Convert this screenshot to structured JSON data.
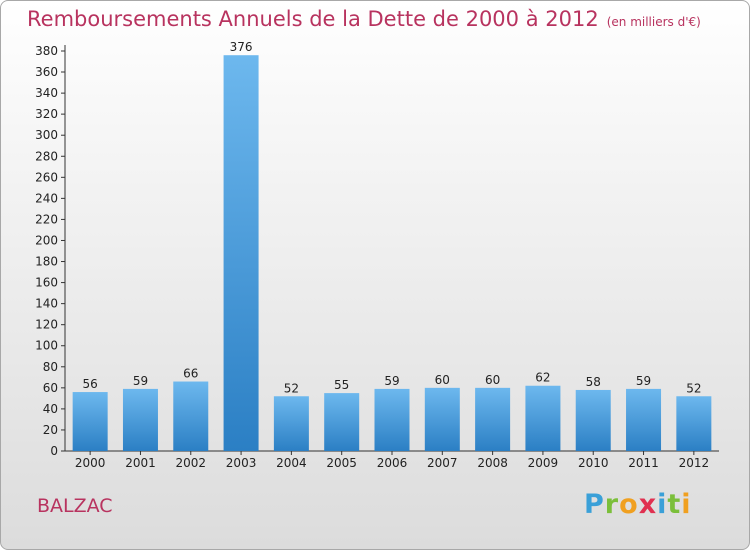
{
  "title": "Remboursements Annuels de la Dette de 2000 à 2012",
  "unit_note": "(en milliers d'€)",
  "commune": "BALZAC",
  "logo": {
    "letters": [
      "P",
      "r",
      "o",
      "x",
      "i",
      "t",
      "i"
    ],
    "colors": [
      "#3aa0d8",
      "#7bbf3a",
      "#f0a020",
      "#e03050",
      "#3aa0d8",
      "#7bbf3a",
      "#f0a020"
    ]
  },
  "colors": {
    "title": "#b8335f",
    "bar_light": "#6db8ee",
    "bar_dark": "#2b7fc4"
  },
  "chart_data": {
    "type": "bar",
    "categories": [
      "2000",
      "2001",
      "2002",
      "2003",
      "2004",
      "2005",
      "2006",
      "2007",
      "2008",
      "2009",
      "2010",
      "2011",
      "2012"
    ],
    "values": [
      56,
      59,
      66,
      376,
      52,
      55,
      59,
      60,
      60,
      62,
      58,
      59,
      52
    ],
    "ylim": [
      0,
      380
    ],
    "ytick_step": 20,
    "grid": false
  }
}
